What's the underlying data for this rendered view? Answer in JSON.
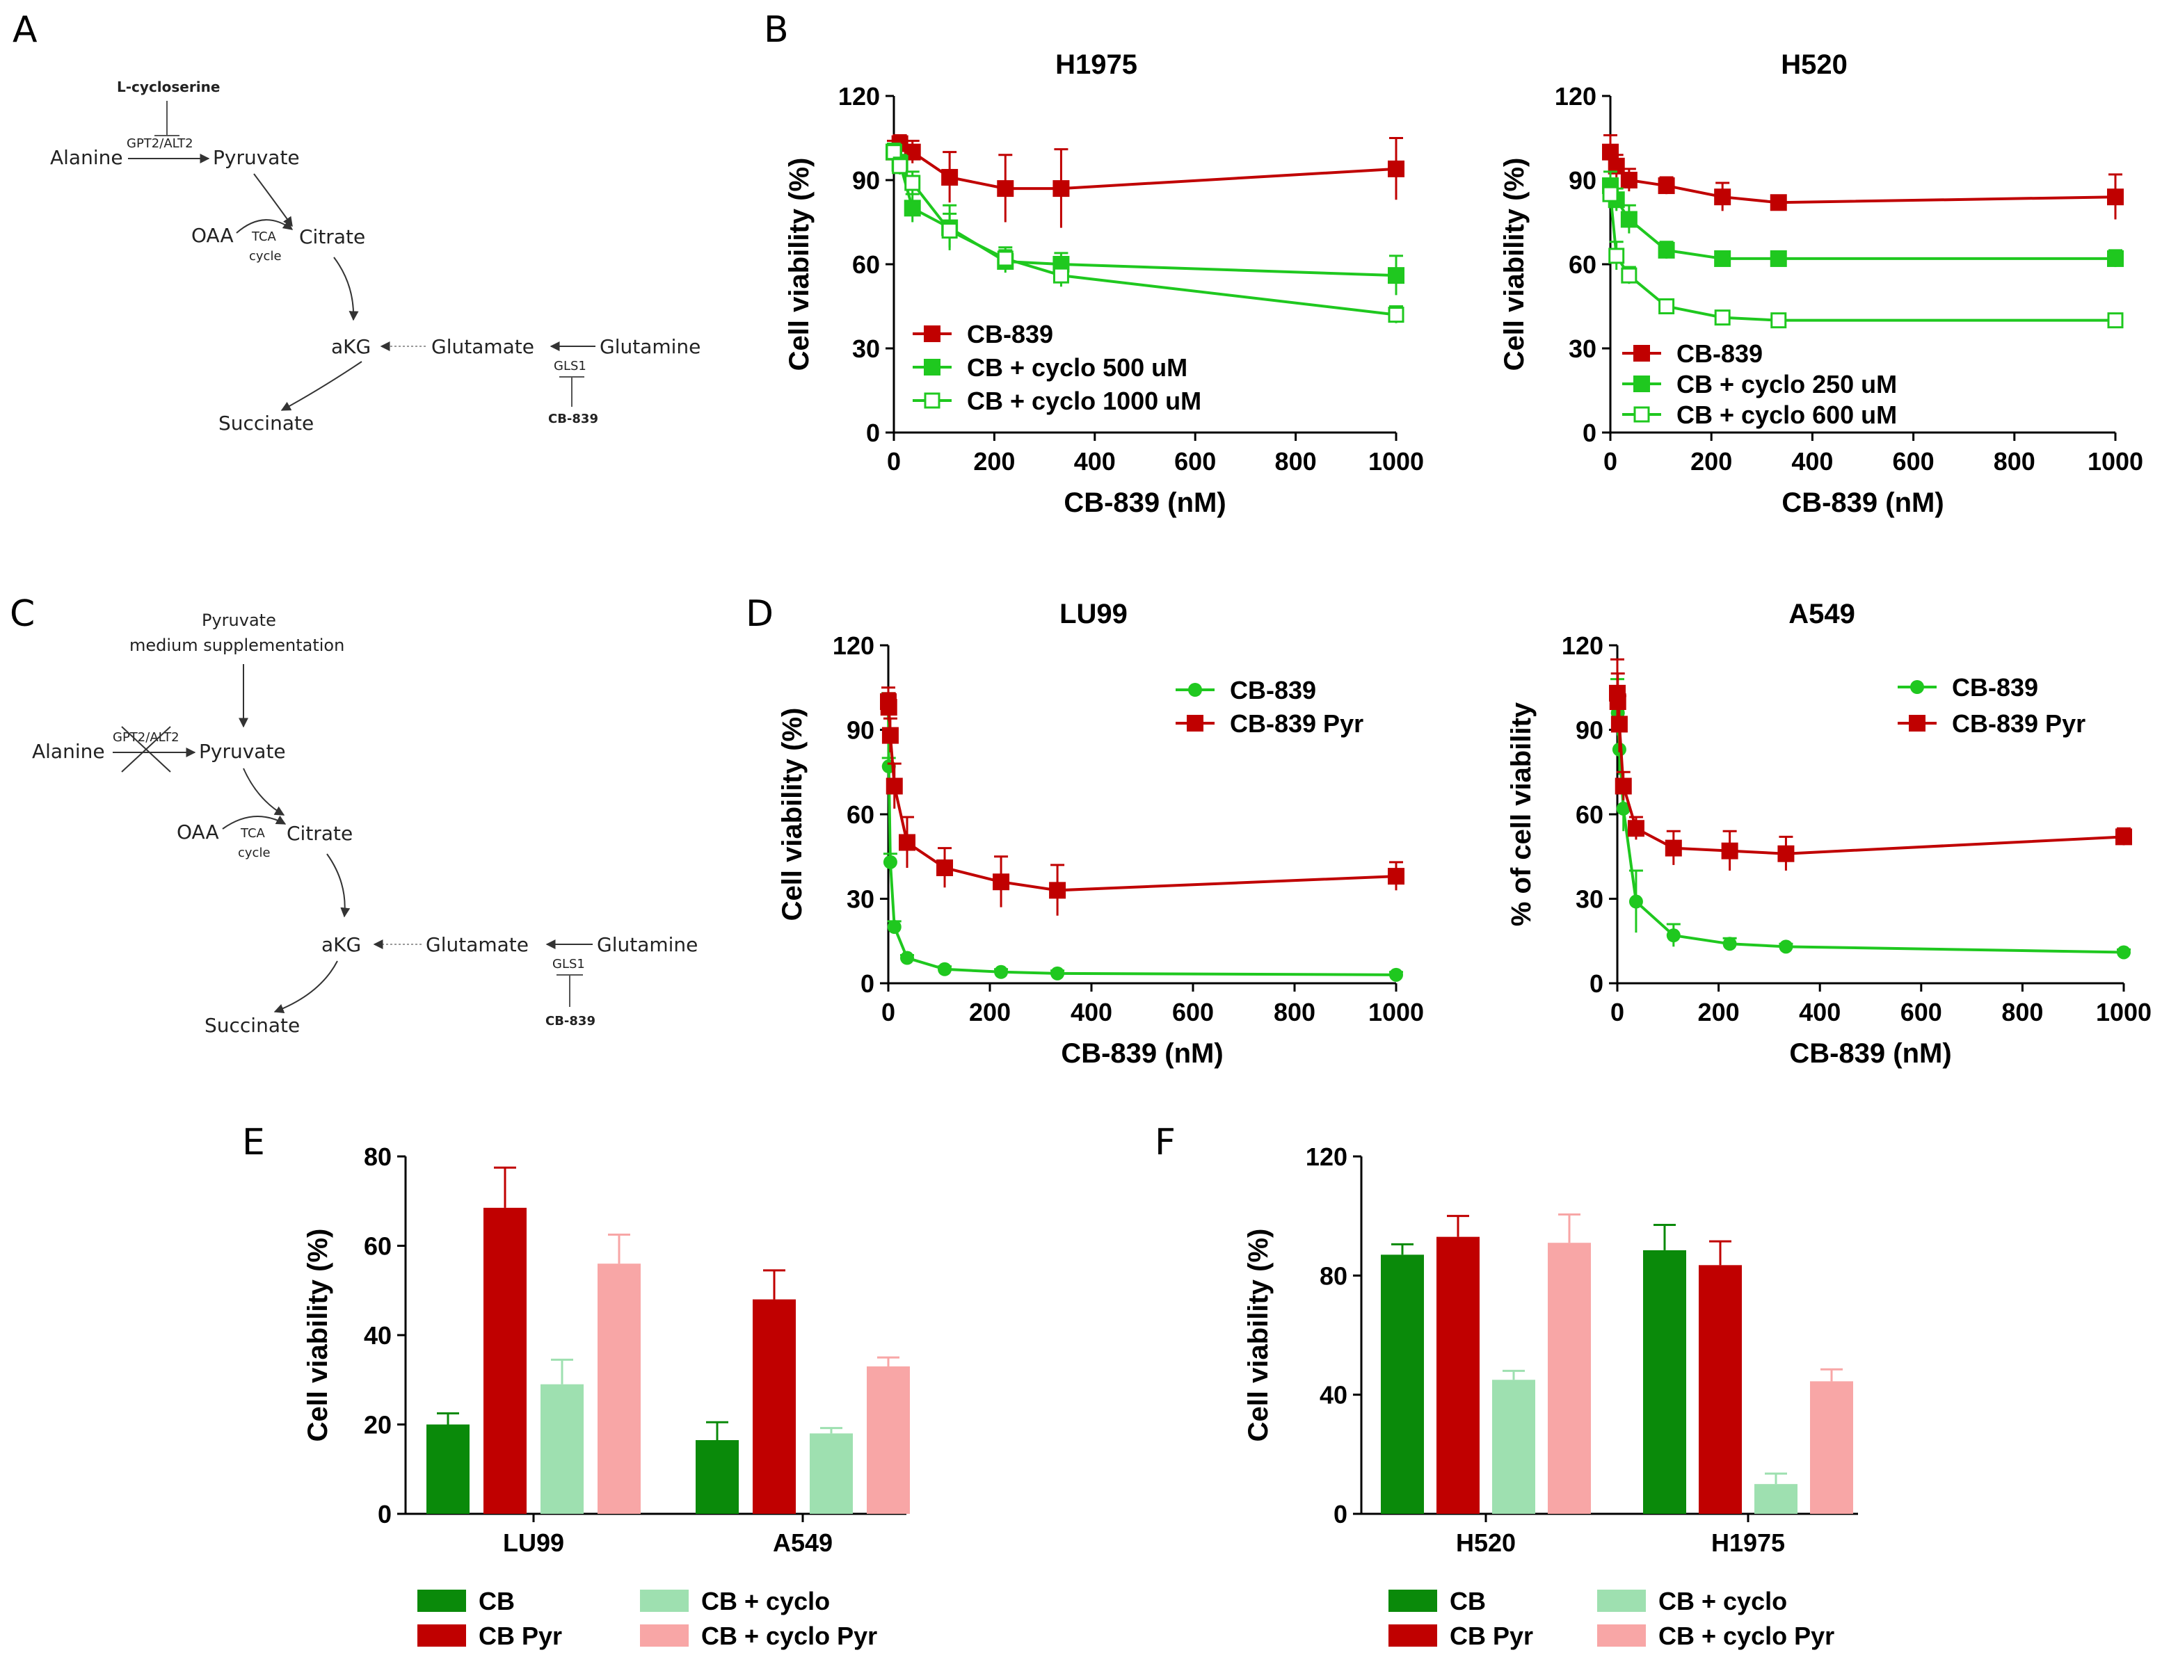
{
  "panels": {
    "A": "A",
    "B": "B",
    "C": "C",
    "D": "D",
    "E": "E",
    "F": "F"
  },
  "pathway_a": {
    "inhibitor_top": "L-cycloserine",
    "alanine": "Alanine",
    "enzyme": "GPT2/ALT2",
    "pyruvate": "Pyruvate",
    "oaa": "OAA",
    "tca": "TCA",
    "cycle": "cycle",
    "citrate": "Citrate",
    "akg": "aKG",
    "glutamate": "Glutamate",
    "glutamine": "Glutamine",
    "gls1": "GLS1",
    "cb839": "CB-839",
    "succinate": "Succinate"
  },
  "pathway_c": {
    "supp_line1": "Pyruvate",
    "supp_line2": "medium supplementation",
    "alanine": "Alanine",
    "enzyme": "GPT2/ALT2",
    "pyruvate": "Pyruvate",
    "oaa": "OAA",
    "tca": "TCA",
    "cycle": "cycle",
    "citrate": "Citrate",
    "akg": "aKG",
    "glutamate": "Glutamate",
    "glutamine": "Glutamine",
    "gls1": "GLS1",
    "cb839": "CB-839",
    "succinate": "Succinate"
  },
  "colors": {
    "red": "#c00000",
    "green": "#1fc81f",
    "dark_green": "#0a8a0a",
    "light_green": "#9ee0b0",
    "dark_red": "#c00000",
    "pink": "#f8a6a6"
  },
  "chart_data": [
    {
      "id": "h1975",
      "type": "line",
      "title": "H1975",
      "xlabel": "CB-839 (nM)",
      "ylabel": "Cell viability (%)",
      "xlim": [
        0,
        1000
      ],
      "ylim": [
        0,
        120
      ],
      "xticks": [
        0,
        200,
        400,
        600,
        800,
        1000
      ],
      "yticks": [
        0,
        30,
        60,
        90,
        120
      ],
      "legend_position": "lower-left",
      "series": [
        {
          "name": "CB-839",
          "color": "#c00000",
          "marker": "square-filled",
          "x": [
            0,
            12,
            37,
            111,
            222,
            333,
            1000
          ],
          "y": [
            100,
            103,
            100,
            91,
            87,
            87,
            94
          ],
          "err": [
            4,
            3,
            4,
            9,
            12,
            14,
            11
          ]
        },
        {
          "name": "CB + cyclo 500 uM",
          "color": "#1fc81f",
          "marker": "square-filled",
          "x": [
            0,
            12,
            37,
            111,
            222,
            333,
            1000
          ],
          "y": [
            100,
            96,
            80,
            73,
            61,
            60,
            56
          ],
          "err": [
            3,
            3,
            5,
            8,
            4,
            4,
            7
          ]
        },
        {
          "name": "CB + cyclo 1000 uM",
          "color": "#1fc81f",
          "marker": "square-open",
          "x": [
            0,
            12,
            37,
            111,
            222,
            333,
            1000
          ],
          "y": [
            100,
            95,
            89,
            72,
            62,
            56,
            42
          ],
          "err": [
            3,
            3,
            4,
            6,
            4,
            4,
            3
          ]
        }
      ]
    },
    {
      "id": "h520",
      "type": "line",
      "title": "H520",
      "xlabel": "CB-839 (nM)",
      "ylabel": "Cell viability (%)",
      "xlim": [
        0,
        1000
      ],
      "ylim": [
        0,
        120
      ],
      "xticks": [
        0,
        200,
        400,
        600,
        800,
        1000
      ],
      "yticks": [
        0,
        30,
        60,
        90,
        120
      ],
      "legend_position": "lower-left",
      "series": [
        {
          "name": "CB-839",
          "color": "#c00000",
          "marker": "square-filled",
          "x": [
            0,
            12,
            37,
            111,
            222,
            333,
            1000
          ],
          "y": [
            100,
            95,
            90,
            88,
            84,
            82,
            84
          ],
          "err": [
            6,
            4,
            4,
            3,
            5,
            2,
            8
          ]
        },
        {
          "name": "CB + cyclo 250 uM",
          "color": "#1fc81f",
          "marker": "square-filled",
          "x": [
            0,
            12,
            37,
            111,
            222,
            333,
            1000
          ],
          "y": [
            88,
            83,
            76,
            65,
            62,
            62,
            62
          ],
          "err": [
            5,
            4,
            5,
            3,
            2,
            2,
            3
          ]
        },
        {
          "name": "CB + cyclo 600 uM",
          "color": "#1fc81f",
          "marker": "square-open",
          "x": [
            0,
            12,
            37,
            111,
            222,
            333,
            1000
          ],
          "y": [
            85,
            63,
            56,
            45,
            41,
            40,
            40
          ],
          "err": [
            5,
            5,
            3,
            2,
            2,
            2,
            2
          ]
        }
      ]
    },
    {
      "id": "lu99",
      "type": "line",
      "title": "LU99",
      "xlabel": "CB-839 (nM)",
      "ylabel": "Cell viability (%)",
      "xlim": [
        0,
        1000
      ],
      "ylim": [
        0,
        120
      ],
      "xticks": [
        0,
        200,
        400,
        600,
        800,
        1000
      ],
      "yticks": [
        0,
        30,
        60,
        90,
        120
      ],
      "legend_position": "top-right",
      "series": [
        {
          "name": "CB-839",
          "color": "#1fc81f",
          "marker": "circle-filled",
          "x": [
            0,
            1,
            4,
            12,
            37,
            111,
            222,
            333,
            1000
          ],
          "y": [
            100,
            77,
            43,
            20,
            9,
            5,
            4,
            3.5,
            3
          ],
          "err": [
            3,
            3,
            3,
            2,
            1,
            1,
            1,
            1,
            1
          ]
        },
        {
          "name": "CB-839 Pyr",
          "color": "#c00000",
          "marker": "square-filled",
          "x": [
            0,
            1,
            4,
            12,
            37,
            111,
            222,
            333,
            1000
          ],
          "y": [
            100,
            98,
            88,
            70,
            50,
            41,
            36,
            33,
            38
          ],
          "err": [
            5,
            5,
            6,
            8,
            9,
            7,
            9,
            9,
            5
          ]
        }
      ]
    },
    {
      "id": "a549",
      "type": "line",
      "title": "A549",
      "xlabel": "CB-839 (nM)",
      "ylabel": "% of cell viability",
      "xlim": [
        0,
        1000
      ],
      "ylim": [
        0,
        120
      ],
      "xticks": [
        0,
        200,
        400,
        600,
        800,
        1000
      ],
      "yticks": [
        0,
        30,
        60,
        90,
        120
      ],
      "legend_position": "top-right",
      "series": [
        {
          "name": "CB-839",
          "color": "#1fc81f",
          "marker": "circle-filled",
          "x": [
            0,
            1,
            4,
            12,
            37,
            111,
            222,
            333,
            1000
          ],
          "y": [
            100,
            96,
            83,
            62,
            29,
            17,
            14,
            13,
            11
          ],
          "err": [
            8,
            8,
            9,
            8,
            11,
            4,
            2,
            1,
            1
          ]
        },
        {
          "name": "CB-839 Pyr",
          "color": "#c00000",
          "marker": "square-filled",
          "x": [
            0,
            1,
            4,
            12,
            37,
            111,
            222,
            333,
            1000
          ],
          "y": [
            103,
            100,
            92,
            70,
            55,
            48,
            47,
            46,
            52
          ],
          "err": [
            12,
            10,
            10,
            5,
            4,
            6,
            7,
            6,
            3
          ]
        }
      ]
    },
    {
      "id": "e",
      "type": "bar",
      "title": "",
      "xlabel": "",
      "ylabel": "Cell viability (%)",
      "ylim": [
        0,
        80
      ],
      "yticks": [
        0,
        20,
        40,
        60,
        80
      ],
      "categories": [
        "LU99",
        "A549"
      ],
      "legend_position": "bottom",
      "series": [
        {
          "name": "CB",
          "color": "#0a8a0a",
          "values": [
            20,
            16.5
          ],
          "err": [
            2.5,
            4
          ]
        },
        {
          "name": "CB Pyr",
          "color": "#c00000",
          "values": [
            68.5,
            48
          ],
          "err": [
            9,
            6.5
          ]
        },
        {
          "name": "CB + cyclo",
          "color": "#9ee0b0",
          "values": [
            29,
            18
          ],
          "err": [
            5.5,
            1.2
          ]
        },
        {
          "name": "CB + cyclo Pyr",
          "color": "#f8a6a6",
          "values": [
            56,
            33
          ],
          "err": [
            6.5,
            2
          ]
        }
      ]
    },
    {
      "id": "f",
      "type": "bar",
      "title": "",
      "xlabel": "",
      "ylabel": "Cell viability (%)",
      "ylim": [
        0,
        120
      ],
      "yticks": [
        0,
        40,
        80,
        120
      ],
      "categories": [
        "H520",
        "H1975"
      ],
      "legend_position": "bottom",
      "series": [
        {
          "name": "CB",
          "color": "#0a8a0a",
          "values": [
            87,
            88.5
          ],
          "err": [
            3.5,
            8.5
          ]
        },
        {
          "name": "CB Pyr",
          "color": "#c00000",
          "values": [
            93,
            83.5
          ],
          "err": [
            7,
            8
          ]
        },
        {
          "name": "CB + cyclo",
          "color": "#9ee0b0",
          "values": [
            45,
            10
          ],
          "err": [
            3,
            3.5
          ]
        },
        {
          "name": "CB + cyclo Pyr",
          "color": "#f8a6a6",
          "values": [
            91,
            44.5
          ],
          "err": [
            9.5,
            4
          ]
        }
      ]
    }
  ]
}
